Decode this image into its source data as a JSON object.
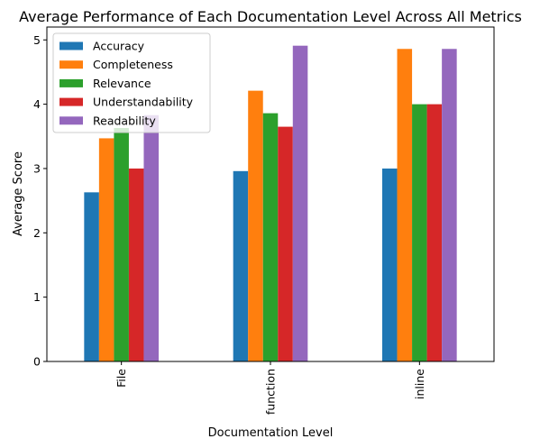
{
  "chart_data": {
    "type": "bar",
    "title": "Average Performance of Each Documentation Level Across All Metrics",
    "xlabel": "Documentation Level",
    "ylabel": "Average Score",
    "categories": [
      "File",
      "function",
      "inline"
    ],
    "ylim": [
      0,
      5.2
    ],
    "yticks": [
      0,
      1,
      2,
      3,
      4,
      5
    ],
    "grid": false,
    "legend_position": "top-left",
    "series": [
      {
        "name": "Accuracy",
        "color": "#1f77b4",
        "values": [
          2.63,
          2.96,
          3.0
        ]
      },
      {
        "name": "Completeness",
        "color": "#ff7f0e",
        "values": [
          3.47,
          4.21,
          4.86
        ]
      },
      {
        "name": "Relevance",
        "color": "#2ca02c",
        "values": [
          3.63,
          3.86,
          4.0
        ]
      },
      {
        "name": "Understandability",
        "color": "#d62728",
        "values": [
          3.0,
          3.65,
          4.0
        ]
      },
      {
        "name": "Readability",
        "color": "#9467bd",
        "values": [
          3.83,
          4.91,
          4.86
        ]
      }
    ]
  }
}
